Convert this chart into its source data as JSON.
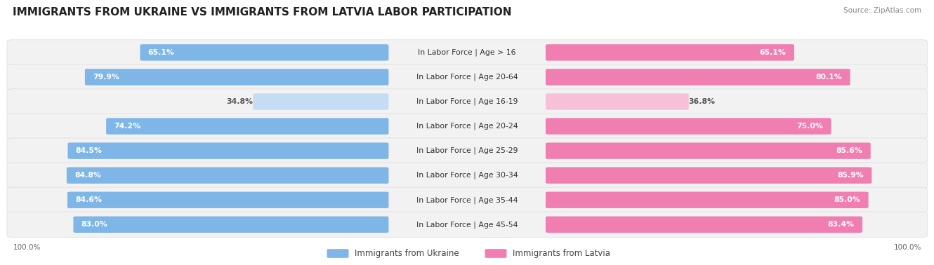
{
  "title": "IMMIGRANTS FROM UKRAINE VS IMMIGRANTS FROM LATVIA LABOR PARTICIPATION",
  "source": "Source: ZipAtlas.com",
  "categories": [
    "In Labor Force | Age > 16",
    "In Labor Force | Age 20-64",
    "In Labor Force | Age 16-19",
    "In Labor Force | Age 20-24",
    "In Labor Force | Age 25-29",
    "In Labor Force | Age 30-34",
    "In Labor Force | Age 35-44",
    "In Labor Force | Age 45-54"
  ],
  "ukraine_values": [
    65.1,
    79.9,
    34.8,
    74.2,
    84.5,
    84.8,
    84.6,
    83.0
  ],
  "latvia_values": [
    65.1,
    80.1,
    36.8,
    75.0,
    85.6,
    85.9,
    85.0,
    83.4
  ],
  "ukraine_color": "#7EB6E8",
  "ukraine_color_light": "#C5DCF5",
  "latvia_color": "#F07EB0",
  "latvia_color_light": "#F5C0D8",
  "row_bg_color": "#F2F2F2",
  "row_edge_color": "#E0E0E0",
  "max_value": 100.0,
  "legend_ukraine": "Immigrants from Ukraine",
  "legend_latvia": "Immigrants from Latvia",
  "title_fontsize": 11,
  "label_fontsize": 7.8,
  "value_fontsize": 7.8,
  "low_threshold": 50.0
}
